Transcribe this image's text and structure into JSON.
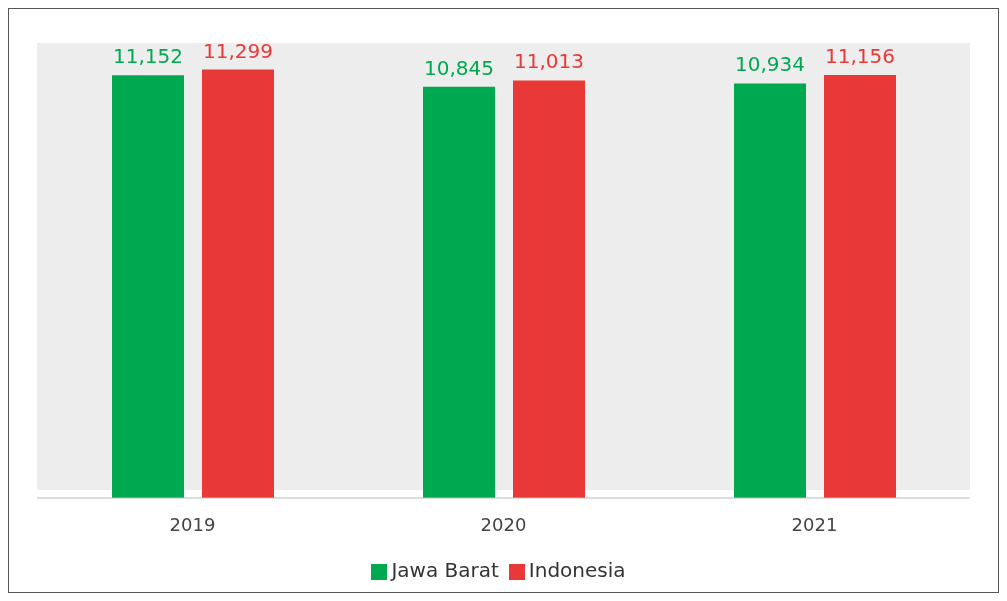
{
  "chart_data": {
    "type": "bar",
    "categories": [
      "2019",
      "2020",
      "2021"
    ],
    "series": [
      {
        "name": "Jawa Barat",
        "color": "#00a84f",
        "values": [
          11152,
          10845,
          10934
        ],
        "value_labels": [
          "11,152",
          "10,845",
          "10,934"
        ]
      },
      {
        "name": "Indonesia",
        "color": "#e83838",
        "values": [
          11299,
          11013,
          11156
        ],
        "value_labels": [
          "11,299",
          "11,013",
          "11,156"
        ]
      }
    ],
    "legend": "bottom"
  }
}
